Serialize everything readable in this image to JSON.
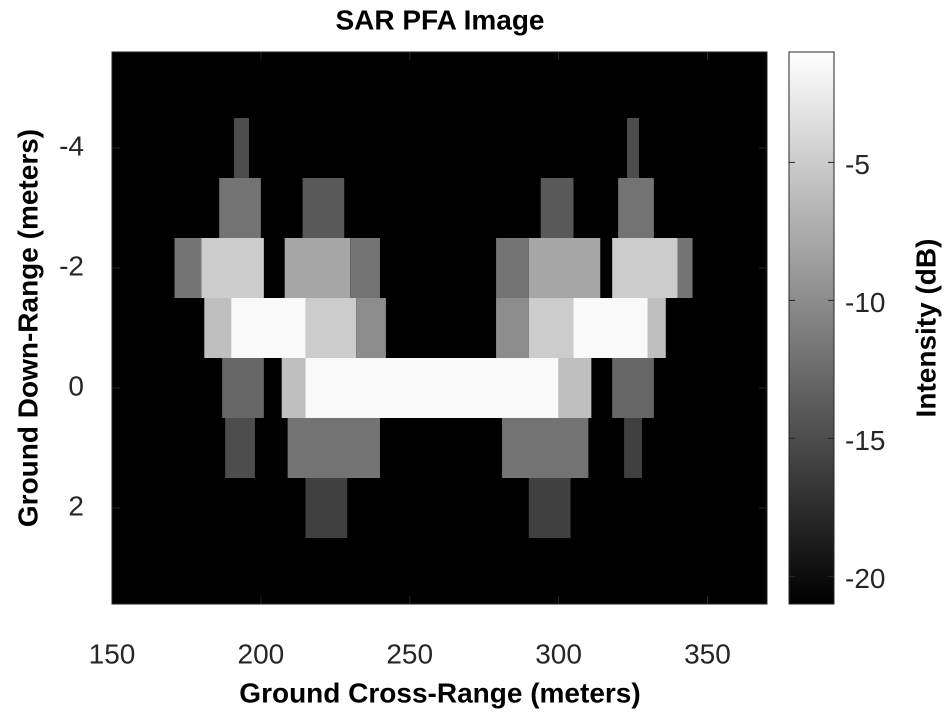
{
  "chart_data": {
    "type": "heatmap",
    "title": "SAR PFA Image",
    "x_label": "Ground Cross-Range (meters)",
    "y_label": "Ground Down-Range (meters)",
    "colorbar_label": "Intensity (dB)",
    "xlim": [
      150,
      370
    ],
    "ylim": [
      -5.6,
      3.6
    ],
    "y_reversed": true,
    "xticks": [
      150,
      200,
      250,
      300,
      350
    ],
    "yticks": [
      -4,
      -2,
      0,
      2
    ],
    "clim": [
      -21,
      -1
    ],
    "cticks": [
      -20,
      -15,
      -10,
      -5
    ],
    "colormap": "gray",
    "cells": [
      {
        "x": [
          191,
          196
        ],
        "y": [
          -4.5,
          -3.5
        ],
        "value": -15
      },
      {
        "x": [
          323,
          327
        ],
        "y": [
          -4.5,
          -3.5
        ],
        "value": -15
      },
      {
        "x": [
          186,
          200
        ],
        "y": [
          -3.5,
          -2.5
        ],
        "value": -12
      },
      {
        "x": [
          214,
          228
        ],
        "y": [
          -3.5,
          -2.5
        ],
        "value": -14
      },
      {
        "x": [
          294,
          305
        ],
        "y": [
          -3.5,
          -2.5
        ],
        "value": -14
      },
      {
        "x": [
          320,
          332
        ],
        "y": [
          -3.5,
          -2.5
        ],
        "value": -12
      },
      {
        "x": [
          171,
          180
        ],
        "y": [
          -2.5,
          -1.5
        ],
        "value": -12
      },
      {
        "x": [
          180,
          201
        ],
        "y": [
          -2.5,
          -1.5
        ],
        "value": -5
      },
      {
        "x": [
          208,
          230
        ],
        "y": [
          -2.5,
          -1.5
        ],
        "value": -8
      },
      {
        "x": [
          230,
          240
        ],
        "y": [
          -2.5,
          -1.5
        ],
        "value": -12
      },
      {
        "x": [
          279,
          290
        ],
        "y": [
          -2.5,
          -1.5
        ],
        "value": -12
      },
      {
        "x": [
          290,
          314
        ],
        "y": [
          -2.5,
          -1.5
        ],
        "value": -8
      },
      {
        "x": [
          318,
          340
        ],
        "y": [
          -2.5,
          -1.5
        ],
        "value": -5
      },
      {
        "x": [
          340,
          345
        ],
        "y": [
          -2.5,
          -1.5
        ],
        "value": -12
      },
      {
        "x": [
          181,
          190
        ],
        "y": [
          -1.5,
          -0.5
        ],
        "value": -6
      },
      {
        "x": [
          190,
          215
        ],
        "y": [
          -1.5,
          -0.5
        ],
        "value": -1.5
      },
      {
        "x": [
          215,
          232
        ],
        "y": [
          -1.5,
          -0.5
        ],
        "value": -5
      },
      {
        "x": [
          232,
          242
        ],
        "y": [
          -1.5,
          -0.5
        ],
        "value": -10
      },
      {
        "x": [
          279,
          290
        ],
        "y": [
          -1.5,
          -0.5
        ],
        "value": -10
      },
      {
        "x": [
          290,
          305
        ],
        "y": [
          -1.5,
          -0.5
        ],
        "value": -5
      },
      {
        "x": [
          305,
          330
        ],
        "y": [
          -1.5,
          -0.5
        ],
        "value": -1.5
      },
      {
        "x": [
          330,
          336
        ],
        "y": [
          -1.5,
          -0.5
        ],
        "value": -6
      },
      {
        "x": [
          187,
          201
        ],
        "y": [
          -0.5,
          0.5
        ],
        "value": -13
      },
      {
        "x": [
          207,
          215
        ],
        "y": [
          -0.5,
          0.5
        ],
        "value": -6
      },
      {
        "x": [
          215,
          300
        ],
        "y": [
          -0.5,
          0.5
        ],
        "value": -1.5
      },
      {
        "x": [
          300,
          311
        ],
        "y": [
          -0.5,
          0.5
        ],
        "value": -6
      },
      {
        "x": [
          318,
          332
        ],
        "y": [
          -0.5,
          0.5
        ],
        "value": -13
      },
      {
        "x": [
          188,
          198
        ],
        "y": [
          0.5,
          1.5
        ],
        "value": -15
      },
      {
        "x": [
          209,
          240
        ],
        "y": [
          0.5,
          1.5
        ],
        "value": -12
      },
      {
        "x": [
          281,
          310
        ],
        "y": [
          0.5,
          1.5
        ],
        "value": -12
      },
      {
        "x": [
          322,
          328
        ],
        "y": [
          0.5,
          1.5
        ],
        "value": -16
      },
      {
        "x": [
          215,
          229
        ],
        "y": [
          1.5,
          2.5
        ],
        "value": -16
      },
      {
        "x": [
          290,
          304
        ],
        "y": [
          1.5,
          2.5
        ],
        "value": -16
      }
    ]
  }
}
